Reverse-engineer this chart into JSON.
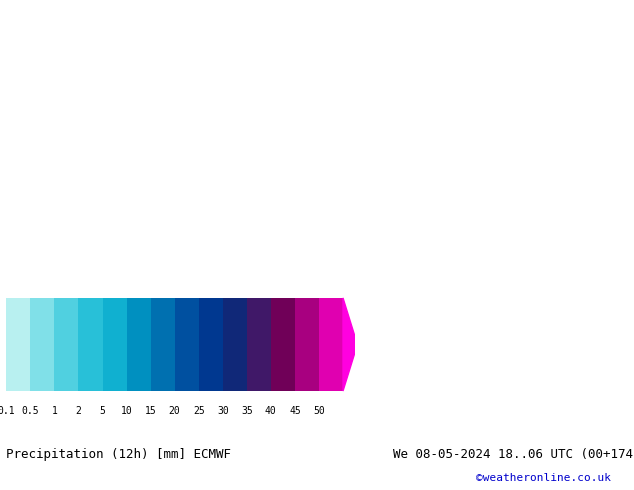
{
  "title_left": "Precipitation (12h) [mm] ECMWF",
  "title_right": "We 08-05-2024 18..06 UTC (00+174",
  "credit": "©weatheronline.co.uk",
  "colorbar_levels": [
    0.1,
    0.5,
    1,
    2,
    5,
    10,
    15,
    20,
    25,
    30,
    35,
    40,
    45,
    50
  ],
  "colorbar_colors": [
    "#b0f0f0",
    "#80e0e0",
    "#50d0d8",
    "#30c0d0",
    "#20b0c8",
    "#1090c0",
    "#0070b0",
    "#0050a0",
    "#003890",
    "#002880",
    "#301070",
    "#500060",
    "#800050",
    "#c00080",
    "#e000b0",
    "#ff00e0"
  ],
  "map_bg_color": "#c8e8a0",
  "fig_bg_color": "#ffffff",
  "bottom_bar_color": "#ffffff",
  "text_color": "#000000",
  "credit_color": "#0000cc",
  "title_fontsize": 9,
  "credit_fontsize": 8,
  "tick_fontsize": 7
}
